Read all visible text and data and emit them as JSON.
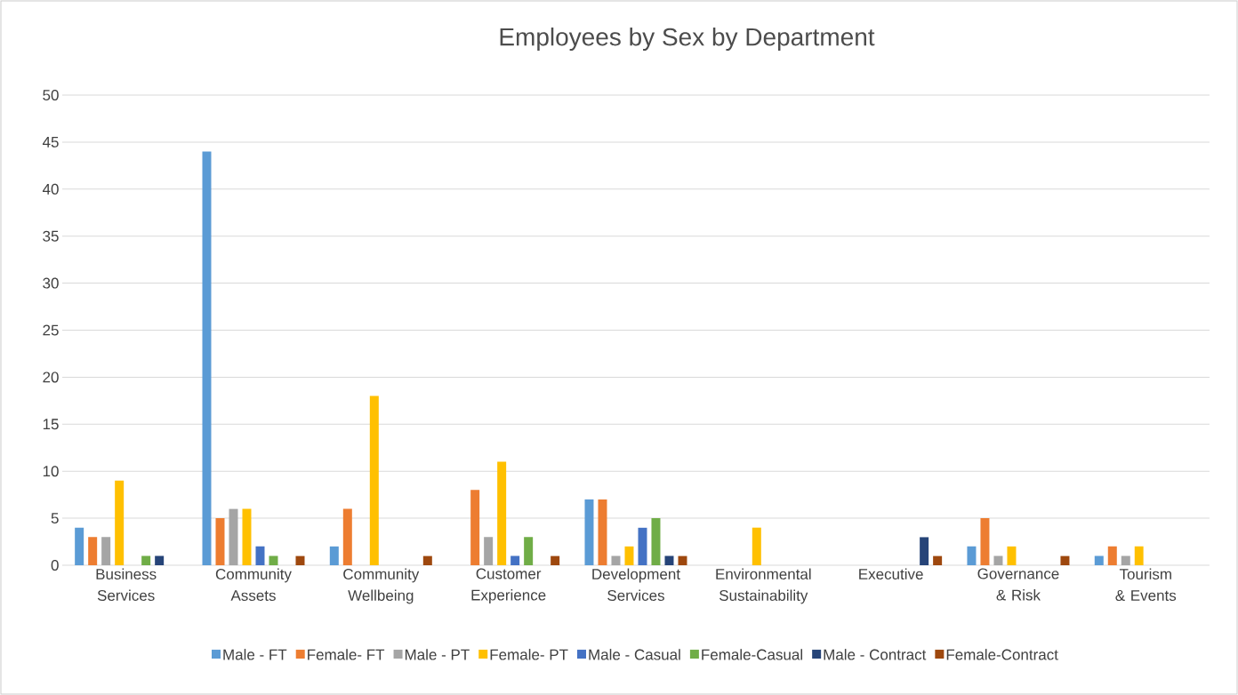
{
  "chart_data": {
    "type": "bar",
    "title": "Employees by Sex by Department",
    "categories": [
      "Business Services",
      "Community Assets",
      "Community Wellbeing",
      "Customer Experience",
      "Development Services",
      "Environmental Sustainability",
      "Executive",
      "Governance & Risk",
      "Tourism & Events"
    ],
    "series": [
      {
        "name": "Male - FT",
        "color": "#5b9bd5",
        "values": [
          4,
          44,
          2,
          0,
          7,
          0,
          0,
          2,
          1
        ]
      },
      {
        "name": "Female- FT",
        "color": "#ed7d31",
        "values": [
          3,
          5,
          6,
          8,
          7,
          0,
          0,
          5,
          2
        ]
      },
      {
        "name": "Male - PT",
        "color": "#a5a5a5",
        "values": [
          3,
          6,
          0,
          3,
          1,
          0,
          0,
          1,
          1
        ]
      },
      {
        "name": "Female- PT",
        "color": "#ffc000",
        "values": [
          9,
          6,
          18,
          11,
          2,
          4,
          0,
          2,
          2
        ]
      },
      {
        "name": "Male - Casual",
        "color": "#4472c4",
        "values": [
          0,
          2,
          0,
          1,
          4,
          0,
          0,
          0,
          0
        ]
      },
      {
        "name": "Female-Casual",
        "color": "#70ad47",
        "values": [
          1,
          1,
          0,
          3,
          5,
          0,
          0,
          0,
          0
        ]
      },
      {
        "name": "Male - Contract",
        "color": "#264478",
        "values": [
          1,
          0,
          0,
          0,
          1,
          0,
          3,
          0,
          0
        ]
      },
      {
        "name": "Female-Contract",
        "color": "#9e480e",
        "values": [
          0,
          1,
          1,
          1,
          1,
          0,
          1,
          1,
          0
        ]
      }
    ],
    "ylim": [
      0,
      50
    ],
    "yticks": [
      0,
      5,
      10,
      15,
      20,
      25,
      30,
      35,
      40,
      45,
      50
    ],
    "grid": "y",
    "legend": "bottom"
  }
}
